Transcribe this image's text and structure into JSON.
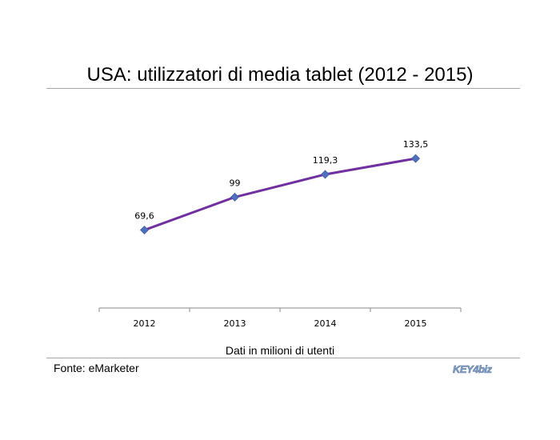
{
  "header": {
    "title": "USA: utilizzatori di media tablet (2012 - 2015)"
  },
  "footer": {
    "caption": "Dati in milioni di utenti",
    "source": "Fonte: eMarketer",
    "logo_text": "KEY4biz"
  },
  "colors": {
    "line": "#7030a0",
    "marker": "#4f6fbf",
    "axis": "#888888"
  },
  "chart_data": {
    "type": "line",
    "categories": [
      "2012",
      "2013",
      "2014",
      "2015"
    ],
    "series": [
      {
        "values": [
          69.6,
          99,
          119.3,
          133.5
        ],
        "labels": [
          "69,6",
          "99",
          "119,3",
          "133,5"
        ]
      }
    ],
    "title": "USA: utilizzatori di media tablet (2012 - 2015)",
    "xlabel": "Dati in milioni di utenti",
    "ylabel": "",
    "ylim": [
      0,
      200
    ],
    "grid": false,
    "legend": "none"
  }
}
